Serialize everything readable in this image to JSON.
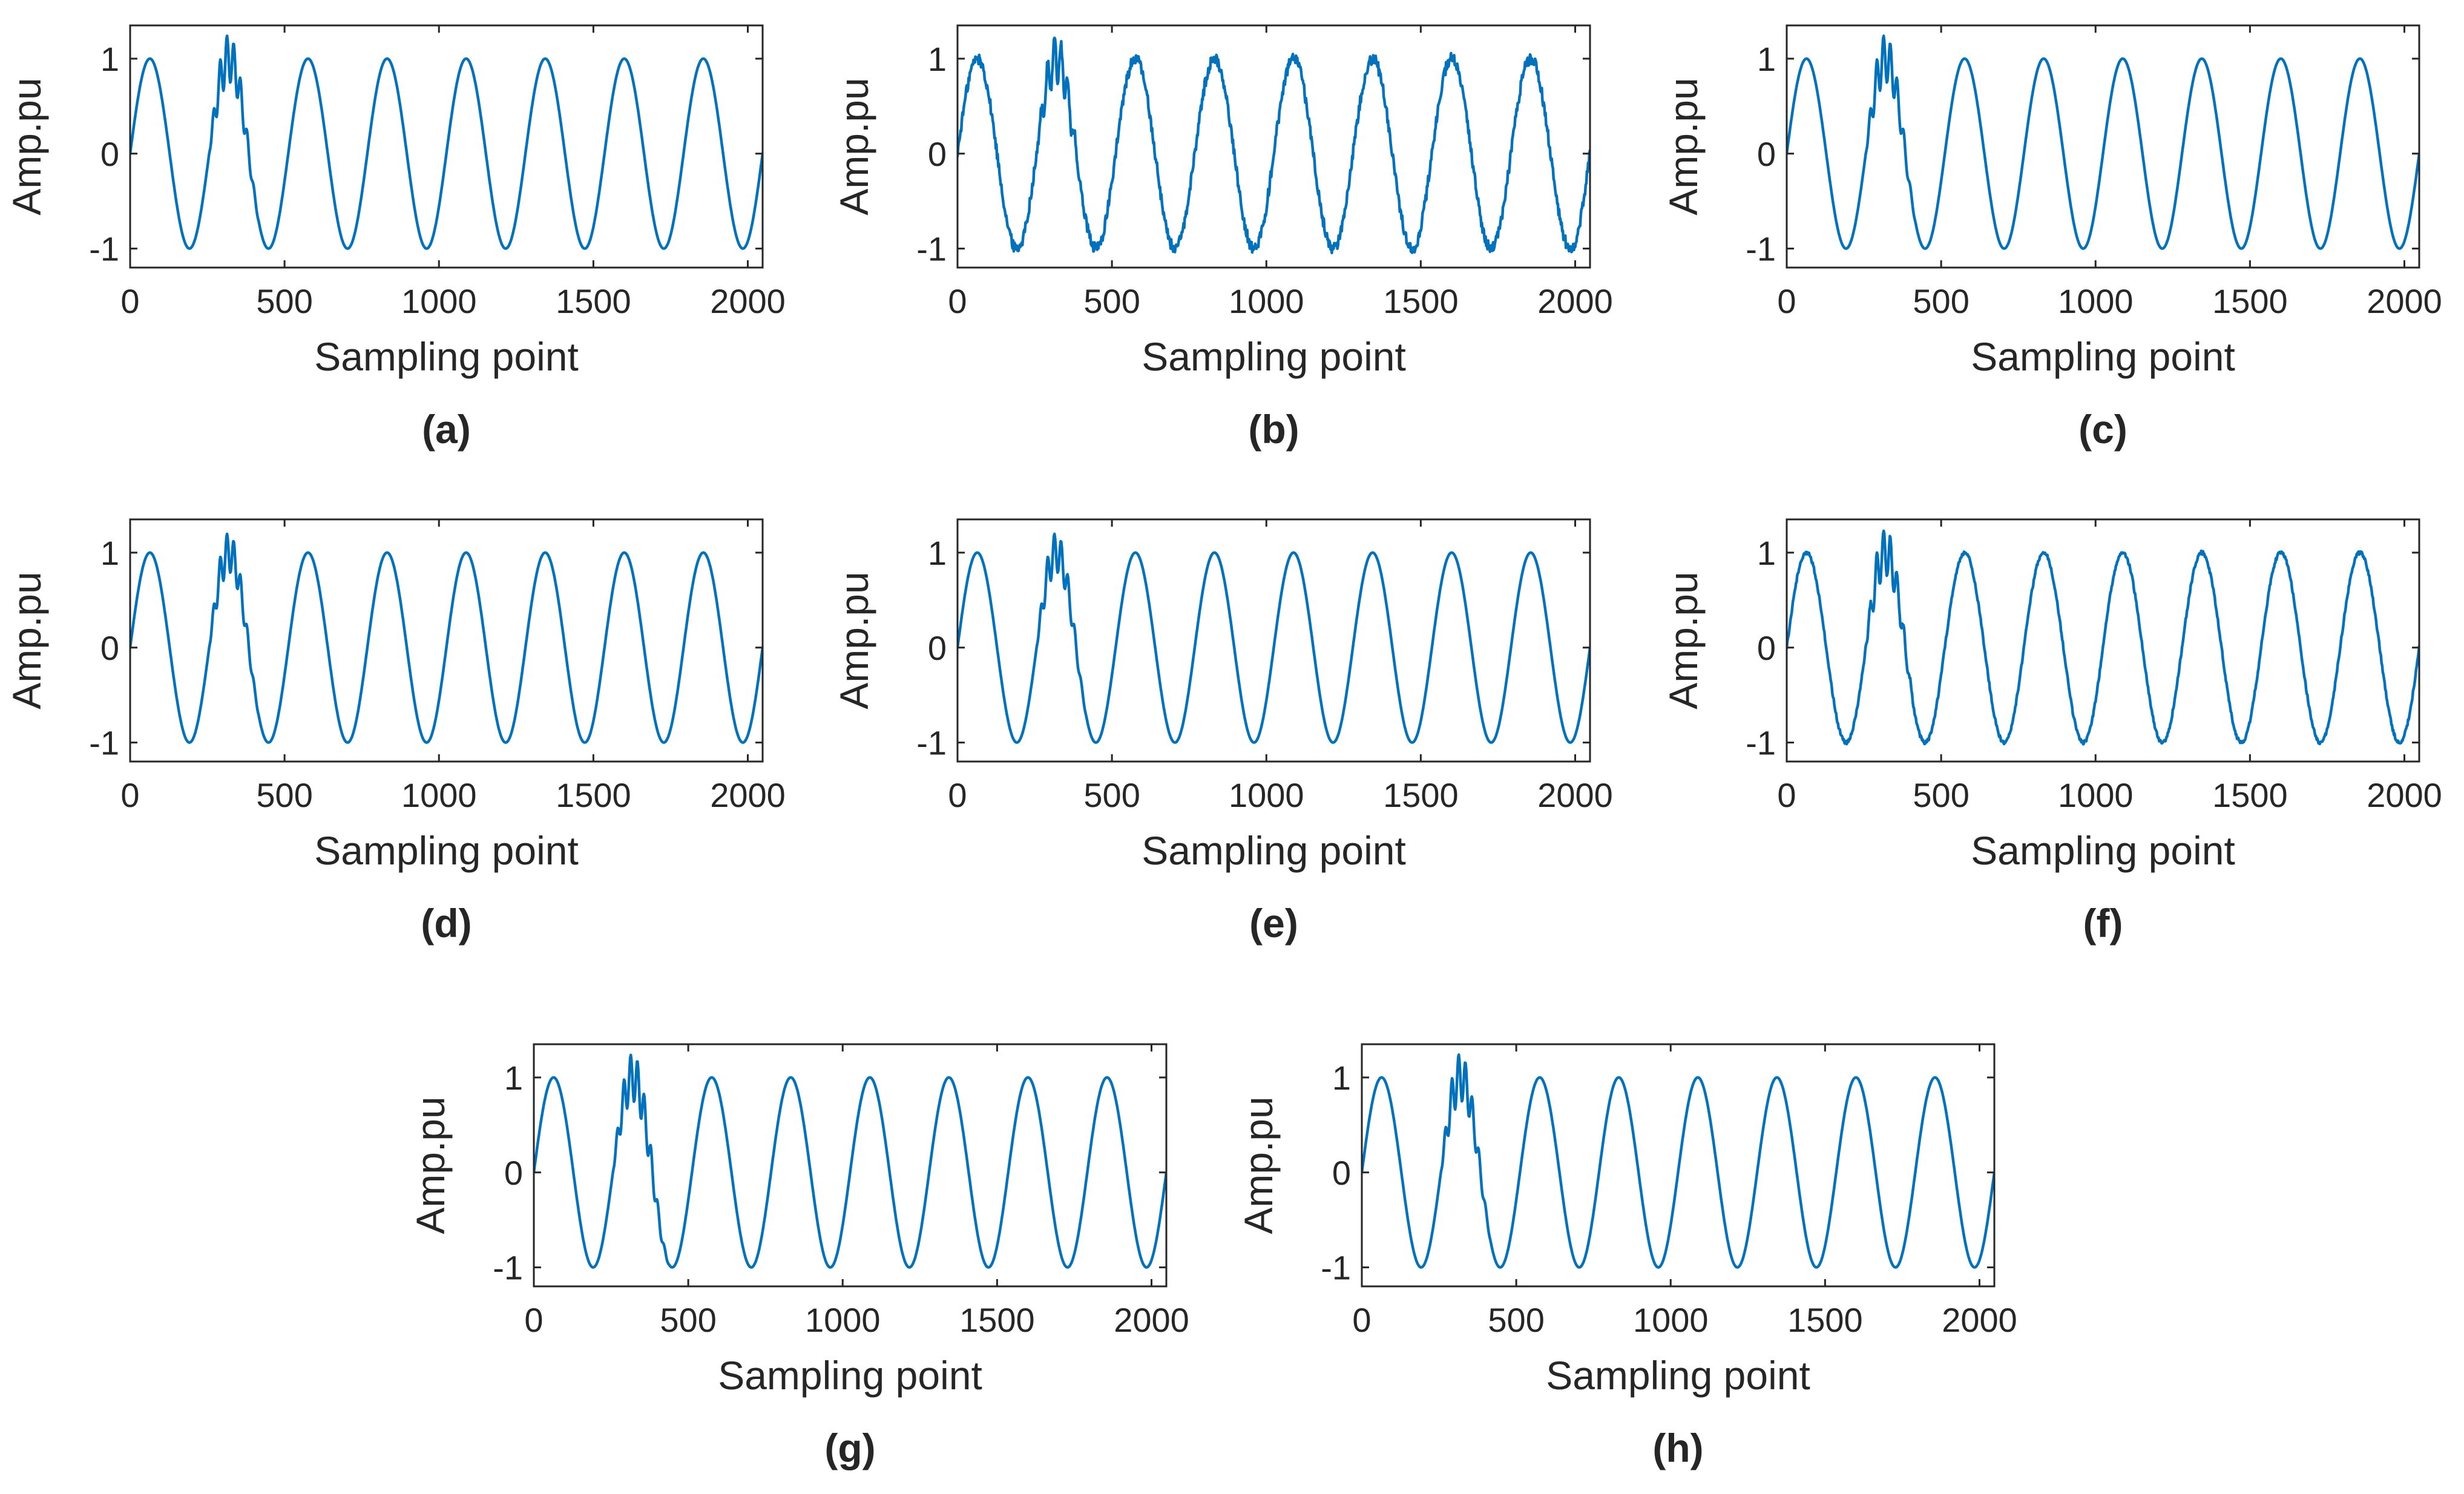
{
  "figure": {
    "description_panels": [
      "a",
      "b",
      "c",
      "d",
      "e",
      "f",
      "g",
      "h"
    ]
  },
  "colors": {
    "line": "#0072BD",
    "axes": "#262626"
  },
  "chart_data": [
    {
      "id": "a",
      "type": "line",
      "panel_label": "(a)",
      "xlabel": "Sampling point",
      "ylabel": "Amp.pu",
      "xlim": [
        0,
        2048
      ],
      "ylim": [
        -1.2,
        1.35
      ],
      "xticks": [
        0,
        500,
        1000,
        1500,
        2000
      ],
      "xtick_labels": [
        "0",
        "500",
        "1000",
        "1500",
        "2000"
      ],
      "yticks": [
        -1,
        0,
        1
      ],
      "ytick_labels": [
        "-1",
        "0",
        "1"
      ],
      "signal": {
        "cycles": 8,
        "samples": 2048,
        "disturbance": "transient oscillation",
        "dist_start": 256,
        "dist_end": 420,
        "dist_amp": 0.3,
        "noise": 0.0
      }
    },
    {
      "id": "b",
      "type": "line",
      "panel_label": "(b)",
      "xlabel": "Sampling point",
      "ylabel": "Amp.pu",
      "xlim": [
        0,
        2048
      ],
      "ylim": [
        -1.2,
        1.35
      ],
      "xticks": [
        0,
        500,
        1000,
        1500,
        2000
      ],
      "xtick_labels": [
        "0",
        "500",
        "1000",
        "1500",
        "2000"
      ],
      "yticks": [
        -1,
        0,
        1
      ],
      "ytick_labels": [
        "-1",
        "0",
        "1"
      ],
      "signal": {
        "cycles": 8,
        "samples": 2048,
        "disturbance": "transient oscillation + noise",
        "dist_start": 256,
        "dist_end": 420,
        "dist_amp": 0.3,
        "noise": 0.06
      }
    },
    {
      "id": "c",
      "type": "line",
      "panel_label": "(c)",
      "xlabel": "Sampling point",
      "ylabel": "Amp.pu",
      "xlim": [
        0,
        2048
      ],
      "ylim": [
        -1.2,
        1.35
      ],
      "xticks": [
        0,
        500,
        1000,
        1500,
        2000
      ],
      "xtick_labels": [
        "0",
        "500",
        "1000",
        "1500",
        "2000"
      ],
      "yticks": [
        -1,
        0,
        1
      ],
      "ytick_labels": [
        "-1",
        "0",
        "1"
      ],
      "signal": {
        "cycles": 8,
        "samples": 2048,
        "disturbance": "transient oscillation",
        "dist_start": 256,
        "dist_end": 420,
        "dist_amp": 0.3,
        "noise": 0.0
      }
    },
    {
      "id": "d",
      "type": "line",
      "panel_label": "(d)",
      "xlabel": "Sampling point",
      "ylabel": "Amp.pu",
      "xlim": [
        0,
        2048
      ],
      "ylim": [
        -1.2,
        1.35
      ],
      "xticks": [
        0,
        500,
        1000,
        1500,
        2000
      ],
      "xtick_labels": [
        "0",
        "500",
        "1000",
        "1500",
        "2000"
      ],
      "yticks": [
        -1,
        0,
        1
      ],
      "ytick_labels": [
        "-1",
        "0",
        "1"
      ],
      "signal": {
        "cycles": 8,
        "samples": 2048,
        "disturbance": "transient oscillation",
        "dist_start": 256,
        "dist_end": 420,
        "dist_amp": 0.25,
        "noise": 0.0
      }
    },
    {
      "id": "e",
      "type": "line",
      "panel_label": "(e)",
      "xlabel": "Sampling point",
      "ylabel": "Amp.pu",
      "xlim": [
        0,
        2048
      ],
      "ylim": [
        -1.2,
        1.35
      ],
      "xticks": [
        0,
        500,
        1000,
        1500,
        2000
      ],
      "xtick_labels": [
        "0",
        "500",
        "1000",
        "1500",
        "2000"
      ],
      "yticks": [
        -1,
        0,
        1
      ],
      "ytick_labels": [
        "-1",
        "0",
        "1"
      ],
      "signal": {
        "cycles": 8,
        "samples": 2048,
        "disturbance": "transient oscillation",
        "dist_start": 256,
        "dist_end": 420,
        "dist_amp": 0.25,
        "noise": 0.0
      }
    },
    {
      "id": "f",
      "type": "line",
      "panel_label": "(f)",
      "xlabel": "Sampling point",
      "ylabel": "Amp.pu",
      "xlim": [
        0,
        2048
      ],
      "ylim": [
        -1.2,
        1.35
      ],
      "xticks": [
        0,
        500,
        1000,
        1500,
        2000
      ],
      "xtick_labels": [
        "0",
        "500",
        "1000",
        "1500",
        "2000"
      ],
      "yticks": [
        -1,
        0,
        1
      ],
      "ytick_labels": [
        "-1",
        "0",
        "1"
      ],
      "signal": {
        "cycles": 8,
        "samples": 2048,
        "disturbance": "transient oscillation + slight noise",
        "dist_start": 256,
        "dist_end": 420,
        "dist_amp": 0.3,
        "noise": 0.02
      }
    },
    {
      "id": "g",
      "type": "line",
      "panel_label": "(g)",
      "xlabel": "Sampling point",
      "ylabel": "Amp.pu",
      "xlim": [
        0,
        2048
      ],
      "ylim": [
        -1.2,
        1.35
      ],
      "xticks": [
        0,
        500,
        1000,
        1500,
        2000
      ],
      "xtick_labels": [
        "0",
        "500",
        "1000",
        "1500",
        "2000"
      ],
      "yticks": [
        -1,
        0,
        1
      ],
      "ytick_labels": [
        "-1",
        "0",
        "1"
      ],
      "signal": {
        "cycles": 8,
        "samples": 2048,
        "disturbance": "transient oscillation",
        "dist_start": 256,
        "dist_end": 440,
        "dist_amp": 0.3,
        "noise": 0.0
      }
    },
    {
      "id": "h",
      "type": "line",
      "panel_label": "(h)",
      "xlabel": "Sampling point",
      "ylabel": "Amp.pu",
      "xlim": [
        0,
        2048
      ],
      "ylim": [
        -1.2,
        1.35
      ],
      "xticks": [
        0,
        500,
        1000,
        1500,
        2000
      ],
      "xtick_labels": [
        "0",
        "500",
        "1000",
        "1500",
        "2000"
      ],
      "yticks": [
        -1,
        0,
        1
      ],
      "ytick_labels": [
        "-1",
        "0",
        "1"
      ],
      "signal": {
        "cycles": 8,
        "samples": 2048,
        "disturbance": "transient oscillation",
        "dist_start": 256,
        "dist_end": 420,
        "dist_amp": 0.3,
        "noise": 0.0
      }
    }
  ]
}
